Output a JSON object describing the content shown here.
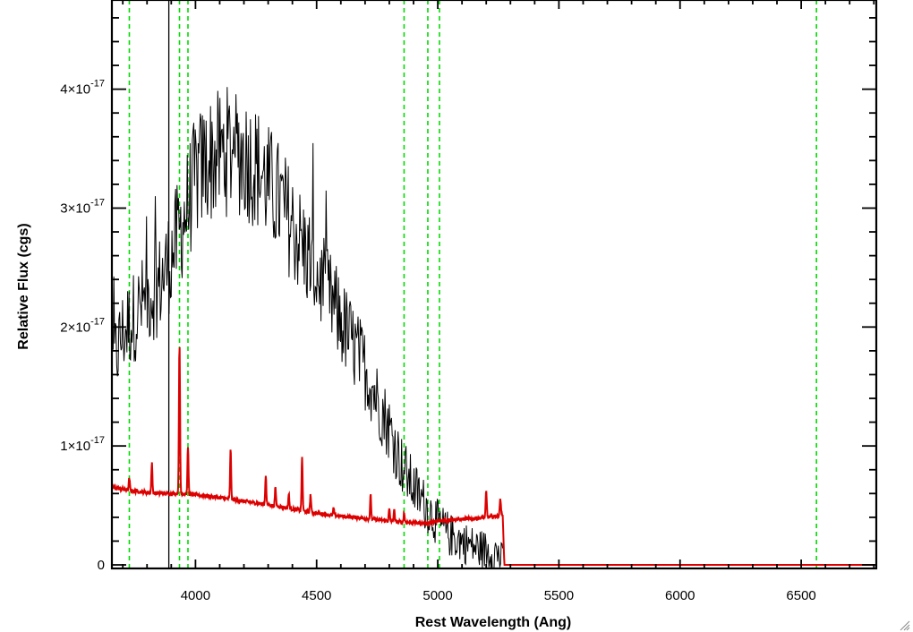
{
  "chart_data": {
    "type": "line",
    "title": "",
    "xlabel": "Rest Wavelength (Ang)",
    "ylabel": "Relative Flux (cgs)",
    "xlim": [
      3655,
      6810
    ],
    "ylim": [
      -0.03,
      4.75
    ],
    "y_scale_note": "×10⁻¹⁷",
    "x_ticks": [
      4000,
      4500,
      5000,
      5500,
      6000,
      6500
    ],
    "x_tick_labels": [
      "4000",
      "4500",
      "5000",
      "5500",
      "6000",
      "6500"
    ],
    "y_ticks": [
      0,
      1,
      2,
      3,
      4
    ],
    "y_tick_labels": [
      {
        "mantissa": "0",
        "exponent": ""
      },
      {
        "mantissa": "1×10",
        "exponent": "-17"
      },
      {
        "mantissa": "2×10",
        "exponent": "-17"
      },
      {
        "mantissa": "3×10",
        "exponent": "-17"
      },
      {
        "mantissa": "4×10",
        "exponent": "-17"
      }
    ],
    "vertical_lines": {
      "color": "#00dd00",
      "style": "dashed",
      "x": [
        3727,
        3934,
        3969,
        4861,
        4959,
        5007,
        6563
      ]
    },
    "solid_vertical_lines": [
      {
        "x": 3890,
        "color": "#000000"
      }
    ],
    "series": [
      {
        "color": "#000000",
        "x": [
          3660,
          3700,
          3750,
          3800,
          3850,
          3900,
          3950,
          4000,
          4050,
          4100,
          4150,
          4200,
          4250,
          4300,
          4350,
          4400,
          4450,
          4500,
          4550,
          4600,
          4650,
          4700,
          4750,
          4800,
          4850,
          4900,
          4950,
          5000,
          5050,
          5100,
          5150,
          5200,
          5250,
          5270
        ],
        "y": [
          1.7,
          1.95,
          2.1,
          2.25,
          2.35,
          2.6,
          2.9,
          3.25,
          3.4,
          3.45,
          3.5,
          3.45,
          3.35,
          3.2,
          3.05,
          2.85,
          2.65,
          2.45,
          2.25,
          2.05,
          1.85,
          1.65,
          1.4,
          1.15,
          0.85,
          0.65,
          0.5,
          0.35,
          0.25,
          0.2,
          0.15,
          0.12,
          0.1,
          0.0
        ],
        "noise": 0.4
      },
      {
        "color": "#dd0000",
        "x": [
          3660,
          3750,
          3850,
          3950,
          4050,
          4150,
          4250,
          4350,
          4450,
          4550,
          4650,
          4750,
          4850,
          4950,
          5050,
          5150,
          5250,
          5268,
          5275,
          6810
        ],
        "y": [
          0.65,
          0.62,
          0.6,
          0.6,
          0.58,
          0.55,
          0.52,
          0.49,
          0.45,
          0.42,
          0.4,
          0.38,
          0.36,
          0.35,
          0.38,
          0.39,
          0.41,
          0.42,
          0.0,
          0.0
        ],
        "emission_lines": [
          {
            "x": 3727,
            "height": 0.1
          },
          {
            "x": 3820,
            "height": 0.25
          },
          {
            "x": 3934,
            "height": 1.25
          },
          {
            "x": 3969,
            "height": 0.4
          },
          {
            "x": 4145,
            "height": 0.42
          },
          {
            "x": 4290,
            "height": 0.25
          },
          {
            "x": 4330,
            "height": 0.15
          },
          {
            "x": 4385,
            "height": 0.12
          },
          {
            "x": 4440,
            "height": 0.45
          },
          {
            "x": 4475,
            "height": 0.15
          },
          {
            "x": 4570,
            "height": 0.06
          },
          {
            "x": 4723,
            "height": 0.2
          },
          {
            "x": 4800,
            "height": 0.1
          },
          {
            "x": 4820,
            "height": 0.1
          },
          {
            "x": 4861,
            "height": 0.08
          },
          {
            "x": 5200,
            "height": 0.22
          },
          {
            "x": 5258,
            "height": 0.15
          }
        ]
      }
    ],
    "grid": false
  }
}
